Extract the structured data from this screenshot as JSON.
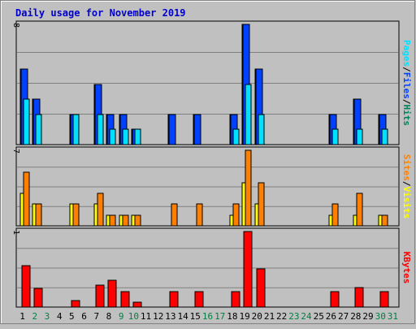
{
  "colors": {
    "background": "#c0c0c0",
    "title": "#0000cc",
    "hits": "#00805c",
    "files": "#0040ff",
    "pages": "#00e0ff",
    "visits": "#ffff00",
    "sites": "#ff8000",
    "kbytes": "#ff0000",
    "weekday_label": "#000000",
    "weekend_label": "#008040"
  },
  "chart_data": {
    "type": "bar",
    "title": "Daily usage for November 2019",
    "x_labels": [
      "1",
      "2",
      "3",
      "4",
      "5",
      "6",
      "7",
      "8",
      "9",
      "10",
      "11",
      "12",
      "13",
      "14",
      "15",
      "16",
      "17",
      "18",
      "19",
      "20",
      "21",
      "22",
      "23",
      "24",
      "25",
      "26",
      "27",
      "28",
      "29",
      "30",
      "31"
    ],
    "weekend_days": [
      2,
      3,
      9,
      10,
      16,
      17,
      23,
      24,
      30,
      31
    ],
    "panels": [
      {
        "name": "hits_files_pages",
        "ymax_label": "8",
        "ymax": 8,
        "legend": [
          "Pages",
          "/",
          "Files",
          "/",
          "Hits"
        ],
        "series": [
          {
            "name": "Hits",
            "values": [
              5,
              3,
              0,
              0,
              2,
              0,
              4,
              2,
              2,
              1,
              0,
              0,
              2,
              0,
              2,
              0,
              0,
              2,
              8,
              5,
              0,
              0,
              0,
              0,
              0,
              2,
              0,
              3,
              0,
              2,
              0
            ]
          },
          {
            "name": "Files",
            "values": [
              5,
              3,
              0,
              0,
              2,
              0,
              4,
              2,
              2,
              1,
              0,
              0,
              2,
              0,
              2,
              0,
              0,
              2,
              8,
              5,
              0,
              0,
              0,
              0,
              0,
              2,
              0,
              3,
              0,
              2,
              0
            ]
          },
          {
            "name": "Pages",
            "values": [
              3,
              2,
              0,
              0,
              2,
              0,
              2,
              1,
              1,
              1,
              0,
              0,
              0,
              0,
              0,
              0,
              0,
              1,
              4,
              2,
              0,
              0,
              0,
              0,
              0,
              1,
              0,
              1,
              0,
              1,
              0
            ]
          }
        ]
      },
      {
        "name": "visits_sites",
        "ymax_label": "7",
        "ymax": 7,
        "legend": [
          "Sites",
          "/",
          "Visits"
        ],
        "series": [
          {
            "name": "Visits",
            "values": [
              3,
              2,
              0,
              0,
              2,
              0,
              2,
              1,
              1,
              1,
              0,
              0,
              0,
              0,
              0,
              0,
              0,
              1,
              4,
              2,
              0,
              0,
              0,
              0,
              0,
              1,
              0,
              1,
              0,
              1,
              0
            ]
          },
          {
            "name": "Sites",
            "values": [
              5,
              2,
              0,
              0,
              2,
              0,
              3,
              1,
              1,
              1,
              0,
              0,
              2,
              0,
              2,
              0,
              0,
              2,
              7,
              4,
              0,
              0,
              0,
              0,
              0,
              2,
              0,
              3,
              0,
              1,
              0
            ]
          }
        ]
      },
      {
        "name": "kbytes",
        "ymax_label": "1",
        "ymax": 1.0,
        "legend": [
          "KBytes"
        ],
        "series": [
          {
            "name": "KBytes",
            "values": [
              0.55,
              0.25,
              0,
              0,
              0.09,
              0,
              0.29,
              0.36,
              0.2,
              0.06,
              0,
              0,
              0.2,
              0,
              0.2,
              0,
              0,
              0.2,
              1.0,
              0.5,
              0,
              0,
              0,
              0,
              0,
              0.2,
              0,
              0.26,
              0,
              0.2,
              0
            ]
          }
        ]
      }
    ]
  }
}
